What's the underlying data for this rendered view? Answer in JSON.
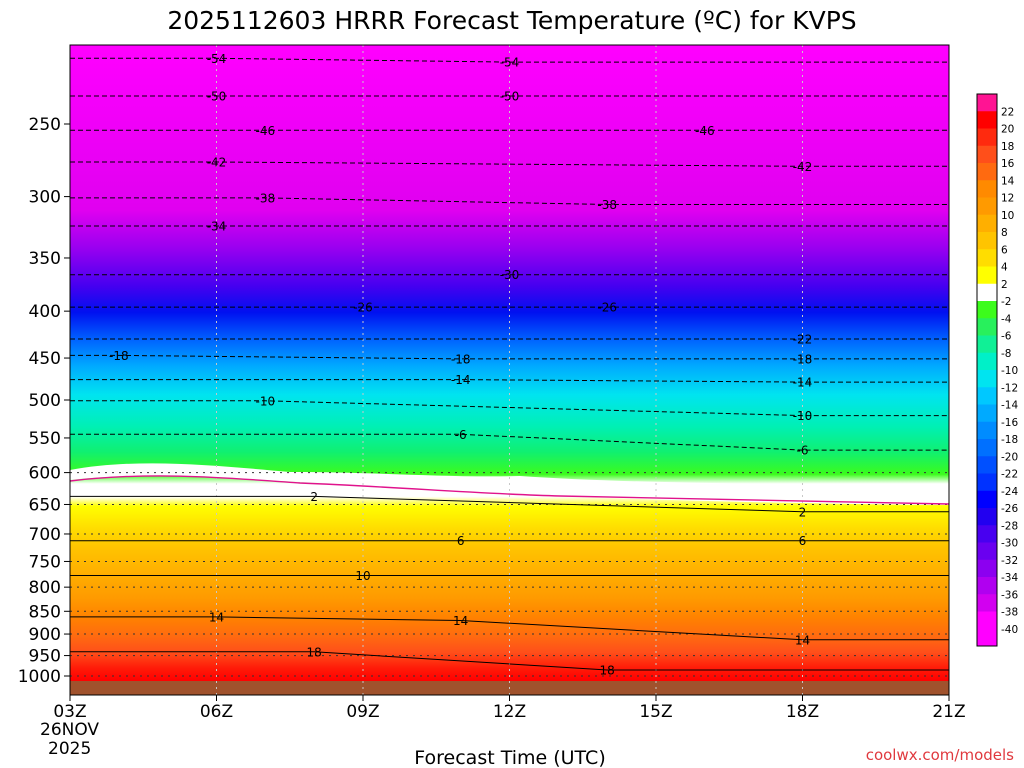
{
  "title": "2025112603 HRRR Forecast Temperature (ºC) for KVPS",
  "xlabel": "Forecast Time (UTC)",
  "watermark": "coolwx.com/models",
  "date_lines": [
    "26NOV",
    "2025"
  ],
  "chart_data": {
    "type": "contour",
    "title": "2025112603 HRRR Forecast Temperature (ºC) for KVPS",
    "xlabel": "Forecast Time (UTC)",
    "ylabel": "",
    "x_tick_labels": [
      "03Z",
      "06Z",
      "09Z",
      "12Z",
      "15Z",
      "18Z",
      "21Z"
    ],
    "x_hours": [
      3,
      6,
      9,
      12,
      15,
      18,
      21
    ],
    "y_tick_labels": [
      "250",
      "300",
      "350",
      "400",
      "450",
      "500",
      "550",
      "600",
      "650",
      "700",
      "750",
      "800",
      "850",
      "900",
      "950",
      "1000"
    ],
    "y_scale": "log-pressure",
    "colorbar_labels": [
      "22",
      "20",
      "18",
      "16",
      "14",
      "12",
      "10",
      "8",
      "6",
      "4",
      "2",
      "-2",
      "-4",
      "-6",
      "-8",
      "-10",
      "-12",
      "-14",
      "-16",
      "-18",
      "-20",
      "-22",
      "-24",
      "-26",
      "-28",
      "-30",
      "-32",
      "-34",
      "-36",
      "-38",
      "-40"
    ],
    "colorbar_colors": [
      "#ff1493",
      "#ff0000",
      "#ff2a0e",
      "#ff4f1a",
      "#ff6a10",
      "#ff8a00",
      "#ff9a00",
      "#ffaf00",
      "#ffc400",
      "#ffdd00",
      "#ffff00",
      "#ffffff",
      "#3cfc1c",
      "#28f05c",
      "#10f096",
      "#00f0c8",
      "#00e4f0",
      "#00c8ff",
      "#00aaff",
      "#008cff",
      "#0070ff",
      "#0050ff",
      "#0032ff",
      "#0000ff",
      "#2200f0",
      "#4800f0",
      "#6a00f0",
      "#8c00f0",
      "#b000f0",
      "#d200f0",
      "#ff00ff"
    ],
    "temperature_profile_03Z": [
      {
        "p": 1000,
        "t": 20
      },
      {
        "p": 950,
        "t": 18
      },
      {
        "p": 900,
        "t": 15
      },
      {
        "p": 850,
        "t": 13
      },
      {
        "p": 800,
        "t": 10
      },
      {
        "p": 750,
        "t": 8
      },
      {
        "p": 700,
        "t": 6
      },
      {
        "p": 650,
        "t": 2
      },
      {
        "p": 600,
        "t": -2
      },
      {
        "p": 550,
        "t": -7
      },
      {
        "p": 500,
        "t": -11
      },
      {
        "p": 450,
        "t": -17
      },
      {
        "p": 400,
        "t": -24
      },
      {
        "p": 350,
        "t": -31
      },
      {
        "p": 300,
        "t": -39
      },
      {
        "p": 250,
        "t": -50
      }
    ],
    "contour_labels": [
      {
        "text": "-54",
        "hour": 6,
        "p": 212
      },
      {
        "text": "-54",
        "hour": 12,
        "p": 214
      },
      {
        "text": "-50",
        "hour": 6,
        "p": 233
      },
      {
        "text": "-50",
        "hour": 12,
        "p": 233
      },
      {
        "text": "-46",
        "hour": 7,
        "p": 254
      },
      {
        "text": "-46",
        "hour": 16,
        "p": 254
      },
      {
        "text": "-42",
        "hour": 6,
        "p": 275
      },
      {
        "text": "-42",
        "hour": 18,
        "p": 278
      },
      {
        "text": "-38",
        "hour": 7,
        "p": 301
      },
      {
        "text": "-38",
        "hour": 14,
        "p": 306
      },
      {
        "text": "-34",
        "hour": 6,
        "p": 323
      },
      {
        "text": "-30",
        "hour": 12,
        "p": 365
      },
      {
        "text": "-26",
        "hour": 9,
        "p": 396
      },
      {
        "text": "-26",
        "hour": 14,
        "p": 396
      },
      {
        "text": "-22",
        "hour": 18,
        "p": 429
      },
      {
        "text": "-18",
        "hour": 4,
        "p": 447
      },
      {
        "text": "-18",
        "hour": 11,
        "p": 451
      },
      {
        "text": "-18",
        "hour": 18,
        "p": 451
      },
      {
        "text": "-14",
        "hour": 11,
        "p": 475
      },
      {
        "text": "-14",
        "hour": 18,
        "p": 478
      },
      {
        "text": "-10",
        "hour": 7,
        "p": 501
      },
      {
        "text": "-10",
        "hour": 18,
        "p": 520
      },
      {
        "text": "-6",
        "hour": 11,
        "p": 545
      },
      {
        "text": "-6",
        "hour": 18,
        "p": 567
      },
      {
        "text": "2",
        "hour": 8,
        "p": 637
      },
      {
        "text": "2",
        "hour": 18,
        "p": 662
      },
      {
        "text": "6",
        "hour": 11,
        "p": 712
      },
      {
        "text": "6",
        "hour": 18,
        "p": 712
      },
      {
        "text": "10",
        "hour": 9,
        "p": 777
      },
      {
        "text": "14",
        "hour": 6,
        "p": 862
      },
      {
        "text": "14",
        "hour": 11,
        "p": 870
      },
      {
        "text": "14",
        "hour": 18,
        "p": 913
      },
      {
        "text": "18",
        "hour": 8,
        "p": 941
      },
      {
        "text": "18",
        "hour": 14,
        "p": 985
      }
    ]
  }
}
